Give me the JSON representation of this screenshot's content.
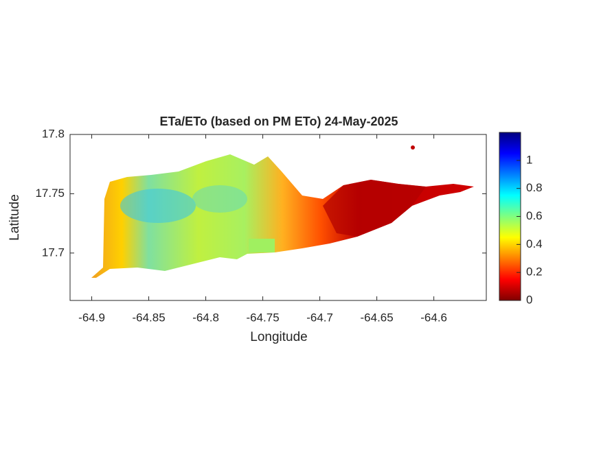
{
  "chart_data": {
    "type": "map",
    "title": "ETa/ETo (based on PM ETo) 24-May-2025",
    "xlabel": "Longitude",
    "ylabel": "Latitude",
    "xlim": [
      -64.919,
      -64.554
    ],
    "ylim": [
      17.66,
      17.8
    ],
    "xticks": [
      -64.9,
      -64.85,
      -64.8,
      -64.75,
      -64.7,
      -64.65,
      -64.6
    ],
    "yticks": [
      17.7,
      17.75,
      17.8
    ],
    "colorbar": {
      "colormap": "jet",
      "clim": [
        0,
        1.2
      ],
      "ticks": [
        0,
        0.2,
        0.4,
        0.6,
        0.8,
        1
      ]
    }
  }
}
